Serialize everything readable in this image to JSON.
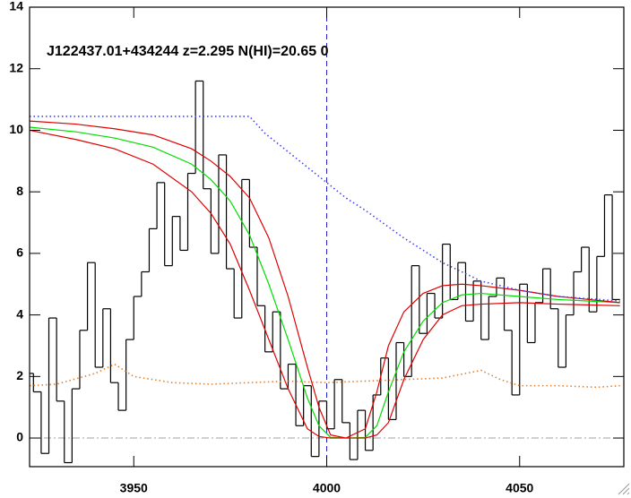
{
  "chart_data": {
    "type": "line",
    "title": "J122437.01+434244 z=2.295 N(HI)=20.65 0",
    "xlim": [
      3923,
      4077
    ],
    "xticks": [
      3950,
      4000,
      4050
    ],
    "ylim": [
      -0.93,
      14
    ],
    "yticks": [
      0,
      2,
      4,
      6,
      8,
      10,
      12,
      14
    ],
    "vline": 4000,
    "vline_color": "#2020c0",
    "hline": 0,
    "hline_color": "#a0a0a0",
    "series": [
      {
        "color": "#000000",
        "style": "step",
        "x": [
          3923,
          3925,
          3927,
          3929,
          3931,
          3933,
          3935,
          3937,
          3939,
          3941,
          3943,
          3945,
          3947,
          3949,
          3951,
          3953,
          3955,
          3957,
          3959,
          3961,
          3963,
          3965,
          3967,
          3969,
          3971,
          3973,
          3975,
          3977,
          3979,
          3981,
          3983,
          3985,
          3987,
          3989,
          3991,
          3993,
          3995,
          3997,
          3999,
          4001,
          4003,
          4005,
          4007,
          4009,
          4011,
          4013,
          4015,
          4017,
          4019,
          4021,
          4023,
          4025,
          4027,
          4029,
          4031,
          4033,
          4035,
          4037,
          4039,
          4041,
          4043,
          4045,
          4047,
          4049,
          4051,
          4053,
          4055,
          4057,
          4059,
          4061,
          4063,
          4065,
          4067,
          4069,
          4071,
          4073,
          4075
        ],
        "values": [
          2.1,
          1.5,
          -0.5,
          3.9,
          1.2,
          -0.8,
          1.6,
          3.5,
          5.7,
          2.3,
          4.2,
          1.8,
          0.9,
          3.2,
          4.6,
          5.4,
          6.8,
          8.3,
          5.6,
          7.2,
          6.1,
          8.6,
          11.6,
          8.1,
          6.0,
          9.2,
          5.5,
          3.9,
          8.4,
          6.2,
          4.3,
          2.8,
          4.1,
          1.6,
          2.4,
          0.4,
          1.7,
          -0.6,
          1.2,
          0.3,
          1.9,
          0.5,
          -0.7,
          0.9,
          -0.4,
          1.4,
          2.6,
          0.6,
          3.1,
          2.0,
          5.6,
          3.4,
          4.7,
          3.9,
          6.3,
          4.5,
          5.7,
          3.8,
          5.1,
          3.2,
          4.6,
          5.2,
          3.5,
          1.4,
          5.0,
          3.1,
          4.4,
          5.5,
          4.2,
          2.3,
          4.0,
          5.4,
          6.2,
          4.1,
          5.9,
          7.9,
          4.5
        ]
      },
      {
        "color": "#00dd00",
        "style": "solid",
        "x": [
          3923,
          3935,
          3945,
          3955,
          3965,
          3970,
          3975,
          3980,
          3985,
          3990,
          3995,
          3998,
          4001,
          4005,
          4010,
          4013,
          4016,
          4020,
          4025,
          4030,
          4035,
          4040,
          4050,
          4060,
          4076
        ],
        "values": [
          10.1,
          9.95,
          9.75,
          9.45,
          8.9,
          8.4,
          7.7,
          6.6,
          5.0,
          3.2,
          1.3,
          0.4,
          0.02,
          0,
          0.02,
          0.4,
          1.5,
          2.8,
          3.8,
          4.4,
          4.65,
          4.7,
          4.6,
          4.5,
          4.4
        ]
      },
      {
        "color": "#dd0000",
        "style": "solid",
        "x": [
          3923,
          3935,
          3945,
          3955,
          3965,
          3970,
          3975,
          3980,
          3985,
          3990,
          3995,
          3998,
          4001,
          4005,
          4010,
          4013,
          4016,
          4020,
          4025,
          4030,
          4035,
          4040,
          4050,
          4060,
          4076
        ],
        "values": [
          10.3,
          10.2,
          10.05,
          9.85,
          9.4,
          9.0,
          8.5,
          7.8,
          6.5,
          4.6,
          2.3,
          1.0,
          0.1,
          0,
          0.3,
          1.5,
          3.0,
          4.1,
          4.7,
          4.95,
          5.0,
          4.95,
          4.8,
          4.6,
          4.4
        ]
      },
      {
        "color": "#dd0000",
        "style": "solid",
        "x": [
          3923,
          3935,
          3945,
          3955,
          3965,
          3970,
          3975,
          3980,
          3985,
          3990,
          3995,
          3998,
          4001,
          4005,
          4010,
          4013,
          4016,
          4020,
          4025,
          4030,
          4035,
          4040,
          4050,
          4060,
          4076
        ],
        "values": [
          10.0,
          9.7,
          9.4,
          8.9,
          8.0,
          7.3,
          6.3,
          4.8,
          3.2,
          1.6,
          0.3,
          0.05,
          0,
          0,
          0,
          0.1,
          0.5,
          1.9,
          3.2,
          4.0,
          4.3,
          4.35,
          4.4,
          4.35,
          4.3
        ]
      },
      {
        "color": "#4040ff",
        "style": "dotted",
        "x": [
          3923,
          3950,
          3980,
          3984,
          3990,
          4000,
          4005,
          4010,
          4020,
          4030,
          4040,
          4050,
          4060,
          4076
        ],
        "values": [
          10.45,
          10.45,
          10.45,
          9.9,
          9.3,
          8.3,
          7.8,
          7.4,
          6.5,
          5.7,
          5.1,
          4.8,
          4.6,
          4.45
        ]
      },
      {
        "color": "#e08030",
        "style": "dotted",
        "x": [
          3923,
          3930,
          3940,
          3945,
          3950,
          3960,
          3970,
          3980,
          3990,
          4000,
          4010,
          4020,
          4030,
          4040,
          4045,
          4050,
          4060,
          4070,
          4076
        ],
        "values": [
          1.7,
          1.75,
          2.1,
          2.4,
          2.0,
          1.8,
          1.75,
          1.8,
          1.85,
          1.8,
          1.85,
          1.9,
          1.95,
          2.2,
          1.9,
          1.7,
          1.7,
          1.65,
          1.7
        ]
      }
    ]
  }
}
